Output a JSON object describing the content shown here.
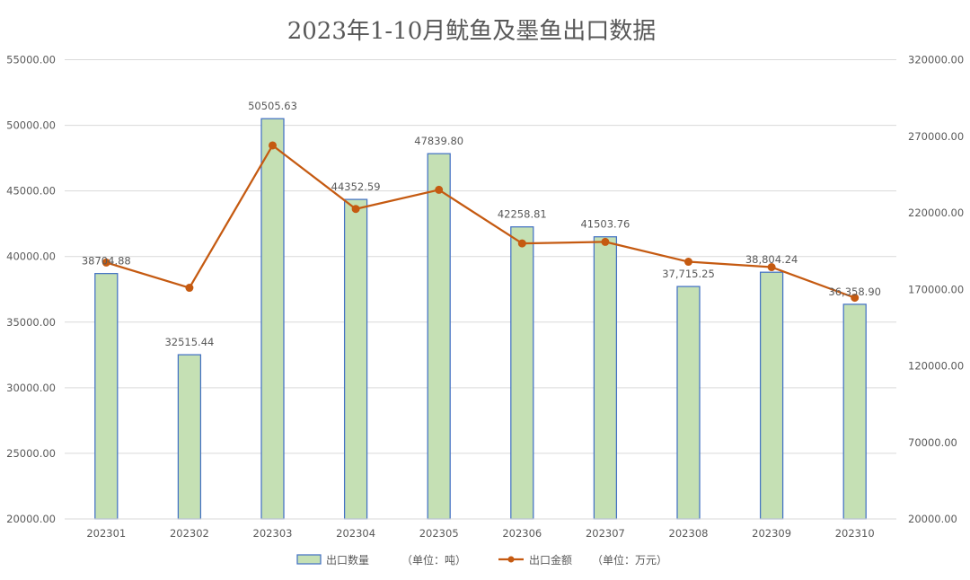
{
  "chart_data": {
    "type": "bar",
    "title": "2023年1-10月鱿鱼及墨鱼出口数据",
    "categories": [
      "202301",
      "202302",
      "202303",
      "202304",
      "202305",
      "202306",
      "202307",
      "202308",
      "202309",
      "202310"
    ],
    "series": [
      {
        "name": "出口数量",
        "unit": "（单位：吨）",
        "type": "bar",
        "axis": "left",
        "color": "#C5E0B4",
        "stroke": "#4472C4",
        "values": [
          38704.88,
          32515.44,
          50505.63,
          44352.59,
          47839.8,
          42258.81,
          41503.76,
          37715.25,
          38804.24,
          36358.9
        ],
        "labels": [
          "38704.88",
          "32515.44",
          "50505.63",
          "44352.59",
          "47839.80",
          "42258.81",
          "41503.76",
          "37,715.25",
          "38,804.24",
          "36,358.90"
        ]
      },
      {
        "name": "出口金额",
        "unit": "（单位：万元）",
        "type": "line",
        "axis": "right",
        "color": "#C55A11",
        "values": [
          187500,
          171000,
          264000,
          222500,
          235000,
          200000,
          201000,
          188000,
          184500,
          164500
        ]
      }
    ],
    "y_left": {
      "min": 20000,
      "max": 55000,
      "step": 5000,
      "tick_labels": [
        "20000.00",
        "25000.00",
        "30000.00",
        "35000.00",
        "40000.00",
        "45000.00",
        "50000.00",
        "55000.00"
      ]
    },
    "y_right": {
      "min": 20000,
      "max": 320000,
      "step": 50000,
      "tick_labels": [
        "20000.00",
        "70000.00",
        "120000.00",
        "170000.00",
        "220000.00",
        "270000.00",
        "320000.00"
      ]
    },
    "grid": true,
    "legend_position": "bottom"
  }
}
